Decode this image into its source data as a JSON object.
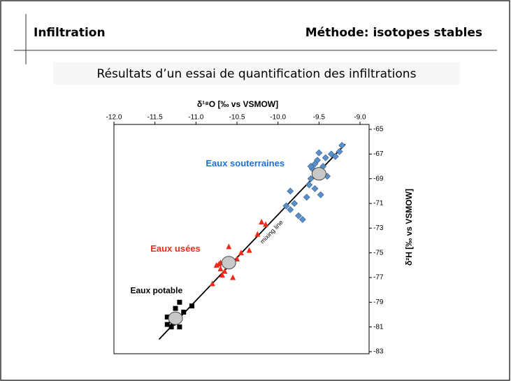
{
  "header": {
    "left": "Infiltration",
    "right": "Méthode: isotopes stables"
  },
  "caption": "Résultats d’un essai de quantification des infiltrations",
  "chart_data": {
    "type": "scatter",
    "x_label": "δ¹⁸O [‰ vs VSMOW]",
    "y_label": "δ²H [‰ vs VSMOW]",
    "xlim": [
      -12.0,
      -9.0
    ],
    "xticks": [
      {
        "value": -12.0,
        "label": "-12.0"
      },
      -11.5,
      {
        "value": -11.0,
        "label": "-11.0"
      },
      -10.5,
      {
        "value": -10.0,
        "label": "-10.0"
      },
      -9.5,
      {
        "value": -9.0,
        "label": "-9.0"
      }
    ],
    "ylim": [
      -83,
      -65
    ],
    "yticks": [
      -83,
      -81,
      -79,
      -77,
      -75,
      -73,
      -71,
      -69,
      -67,
      -65
    ],
    "series": [
      {
        "name": "Eaux potable",
        "color": "#000000",
        "marker": "square",
        "x": [
          -11.35,
          -11.3,
          -11.25,
          -11.2,
          -11.3,
          -11.2,
          -11.15,
          -11.25,
          -11.2,
          -11.05,
          -11.35,
          -11.28
        ],
        "values": [
          -80.8,
          -80.5,
          -80.0,
          -80.3,
          -81.0,
          -81.0,
          -79.8,
          -79.5,
          -79.0,
          -79.3,
          -80.2,
          -80.7
        ]
      },
      {
        "name": "Eaux usées",
        "color": "#ee2b1b",
        "marker": "triangle",
        "x": [
          -10.75,
          -10.7,
          -10.72,
          -10.65,
          -10.6,
          -10.8,
          -10.6,
          -10.55,
          -10.68,
          -10.5,
          -10.45,
          -10.35,
          -10.25,
          -10.2,
          -10.15,
          -10.7
        ],
        "values": [
          -76.0,
          -76.3,
          -75.9,
          -76.5,
          -76.0,
          -77.5,
          -74.5,
          -77.0,
          -76.8,
          -75.5,
          -75.0,
          -74.8,
          -73.5,
          -72.5,
          -72.7,
          -75.8
        ]
      },
      {
        "name": "Eaux souterraines",
        "color": "#1f6fd1",
        "marker": "diamond",
        "x": [
          -9.85,
          -9.8,
          -9.75,
          -9.7,
          -9.65,
          -9.62,
          -9.6,
          -9.58,
          -9.55,
          -9.5,
          -9.52,
          -9.48,
          -9.45,
          -9.42,
          -9.4,
          -9.35,
          -9.3,
          -9.25,
          -9.22,
          -9.6,
          -9.55,
          -9.5,
          -9.85,
          -9.9
        ],
        "values": [
          -71.5,
          -71.0,
          -72.0,
          -72.3,
          -70.5,
          -69.5,
          -69.0,
          -68.2,
          -69.8,
          -68.5,
          -67.5,
          -70.3,
          -68.0,
          -67.3,
          -68.8,
          -67.0,
          -67.2,
          -66.8,
          -66.3,
          -68.0,
          -67.8,
          -66.9,
          -70.0,
          -71.2
        ]
      },
      {
        "color": "#c8c8c8",
        "marker": "circle",
        "x": [
          -11.25,
          -10.6,
          -9.5
        ],
        "values": [
          -80.3,
          -75.8,
          -68.6
        ]
      }
    ],
    "mixing_line": {
      "label": "mixing line",
      "x": [
        -11.45,
        -9.18
      ],
      "values": [
        -82,
        -66.2
      ]
    }
  }
}
